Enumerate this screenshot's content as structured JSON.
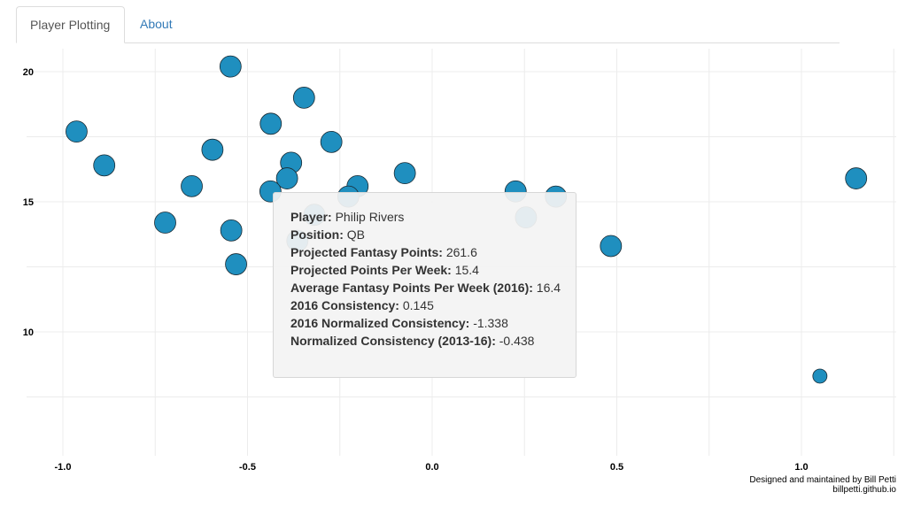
{
  "tabs": [
    {
      "label": "Player Plotting",
      "active": true
    },
    {
      "label": "About",
      "active": false
    }
  ],
  "colors": {
    "point_fill": "#1f8fbf",
    "point_stroke": "#1a2a33",
    "grid": "#ececec",
    "tab_link": "#337ab7"
  },
  "chart_data": {
    "type": "scatter",
    "xlim": [
      -1.0,
      1.25
    ],
    "ylim": [
      5.4,
      21.5
    ],
    "x_ticks": [
      -1.0,
      -0.5,
      0.0,
      0.5,
      1.0
    ],
    "x_tick_labels": [
      "-1.0",
      "-0.5",
      "0.0",
      "0.5",
      "1.0"
    ],
    "y_ticks": [
      10,
      15,
      20
    ],
    "y_tick_labels": [
      "10",
      "15",
      "20"
    ],
    "grid": true,
    "points": [
      {
        "x": -0.546,
        "y": 20.2,
        "size": "large"
      },
      {
        "x": -0.347,
        "y": 19.0,
        "size": "large"
      },
      {
        "x": -0.437,
        "y": 18.0,
        "size": "large"
      },
      {
        "x": -0.963,
        "y": 17.7,
        "size": "large"
      },
      {
        "x": -0.273,
        "y": 17.3,
        "size": "large"
      },
      {
        "x": -0.595,
        "y": 17.0,
        "size": "large"
      },
      {
        "x": -0.382,
        "y": 16.5,
        "size": "large"
      },
      {
        "x": -0.888,
        "y": 16.4,
        "size": "large"
      },
      {
        "x": -0.074,
        "y": 16.1,
        "size": "large"
      },
      {
        "x": -0.393,
        "y": 15.9,
        "size": "large"
      },
      {
        "x": 1.148,
        "y": 15.9,
        "size": "large"
      },
      {
        "x": -0.651,
        "y": 15.6,
        "size": "large"
      },
      {
        "x": -0.202,
        "y": 15.6,
        "size": "large"
      },
      {
        "x": -0.438,
        "y": 15.4,
        "size": "large"
      },
      {
        "x": 0.226,
        "y": 15.4,
        "size": "large"
      },
      {
        "x": -0.227,
        "y": 15.2,
        "size": "large"
      },
      {
        "x": 0.335,
        "y": 15.2,
        "size": "large"
      },
      {
        "x": -0.319,
        "y": 14.5,
        "size": "large"
      },
      {
        "x": 0.254,
        "y": 14.4,
        "size": "large"
      },
      {
        "x": -0.723,
        "y": 14.2,
        "size": "large"
      },
      {
        "x": -0.544,
        "y": 13.9,
        "size": "large"
      },
      {
        "x": -0.365,
        "y": 13.5,
        "size": "large"
      },
      {
        "x": 0.484,
        "y": 13.3,
        "size": "large"
      },
      {
        "x": -0.531,
        "y": 12.6,
        "size": "large"
      },
      {
        "x": 1.05,
        "y": 8.3,
        "size": "small"
      }
    ]
  },
  "tooltip": {
    "rows": [
      {
        "label": "Player:",
        "value": "Philip Rivers"
      },
      {
        "label": "Position:",
        "value": "QB"
      },
      {
        "label": "Projected Fantasy Points:",
        "value": "261.6"
      },
      {
        "label": "Projected Points Per Week:",
        "value": "15.4"
      },
      {
        "label": "Average Fantasy Points Per Week (2016):",
        "value": "16.4"
      },
      {
        "label": "2016 Consistency:",
        "value": "0.145"
      },
      {
        "label": "2016 Normalized Consistency:",
        "value": "-1.338"
      },
      {
        "label": "Normalized Consistency (2013-16):",
        "value": "-0.438"
      }
    ]
  },
  "credit": {
    "line1": "Designed and maintained by Bill Petti",
    "line2": "billpetti.github.io"
  }
}
